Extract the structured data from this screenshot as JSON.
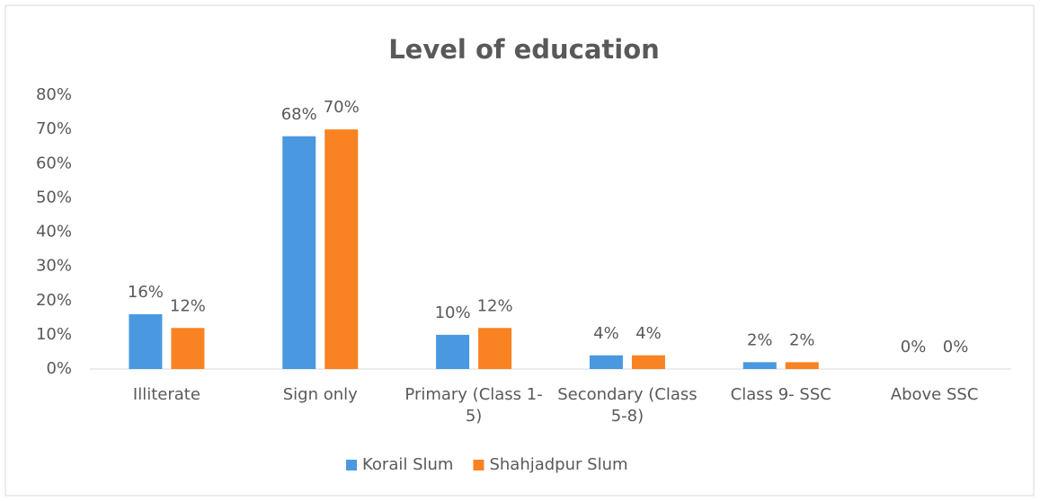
{
  "chart_data": {
    "type": "bar",
    "title": "Level of education",
    "categories": [
      "Illiterate",
      "Sign only",
      "Primary (Class 1-5)",
      "Secondary (Class 5-8)",
      "Class 9- SSC",
      "Above SSC"
    ],
    "series": [
      {
        "name": "Korail Slum",
        "color": "#4a98e0",
        "values": [
          16,
          68,
          10,
          4,
          2,
          0
        ],
        "value_labels": [
          "16%",
          "68%",
          "10%",
          "4%",
          "2%",
          "0%"
        ]
      },
      {
        "name": "Shahjadpur Slum",
        "color": "#f98222",
        "values": [
          12,
          70,
          12,
          4,
          2,
          0
        ],
        "value_labels": [
          "12%",
          "70%",
          "12%",
          "4%",
          "2%",
          "0%"
        ]
      }
    ],
    "ylim": [
      0,
      80
    ],
    "yticks": [
      {
        "value": 0,
        "label": "0%"
      },
      {
        "value": 10,
        "label": "10%"
      },
      {
        "value": 20,
        "label": "20%"
      },
      {
        "value": 30,
        "label": "30%"
      },
      {
        "value": 40,
        "label": "40%"
      },
      {
        "value": 50,
        "label": "50%"
      },
      {
        "value": 60,
        "label": "60%"
      },
      {
        "value": 70,
        "label": "70%"
      },
      {
        "value": 80,
        "label": "80%"
      }
    ],
    "grid": false,
    "legend": "bottom"
  }
}
